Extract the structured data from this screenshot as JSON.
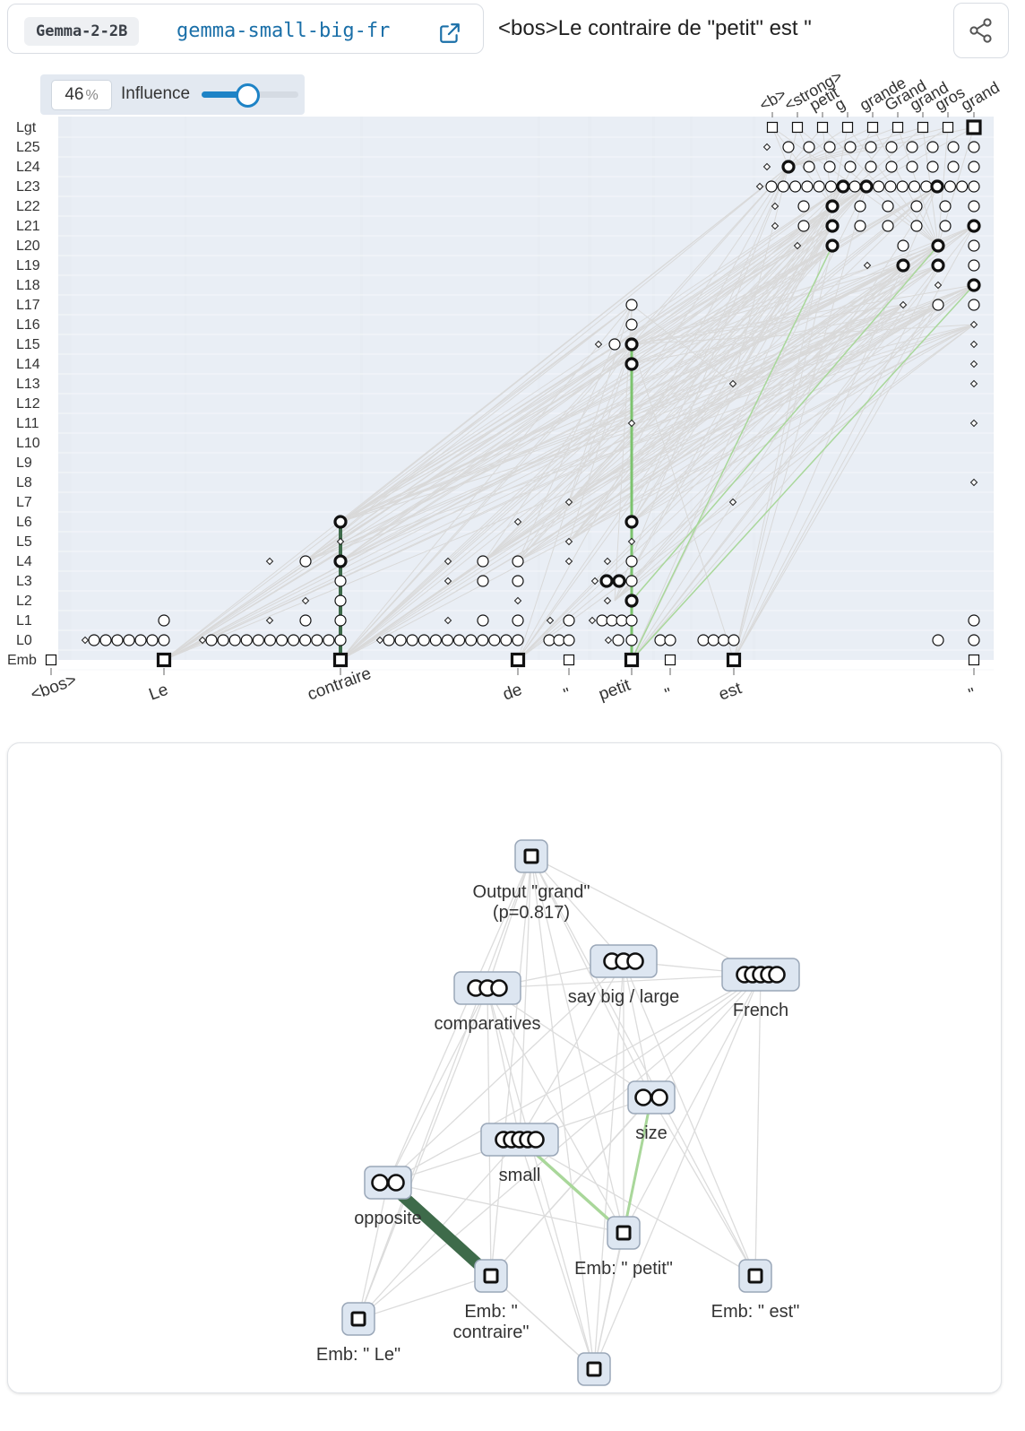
{
  "header": {
    "model_badge": "Gemma-2-2B",
    "graph_name": "gemma-small-big-fr",
    "prompt": "<bos>Le contraire de \"petit\" est \""
  },
  "influence": {
    "value": "46",
    "unit": "%",
    "label": "Influence",
    "fraction": 0.46
  },
  "attribution_graph": {
    "layer_labels": [
      "Lgt",
      "L25",
      "L24",
      "L23",
      "L22",
      "L21",
      "L20",
      "L19",
      "L18",
      "L17",
      "L16",
      "L15",
      "L14",
      "L13",
      "L12",
      "L11",
      "L10",
      "L9",
      "L8",
      "L7",
      "L6",
      "L5",
      "L4",
      "L3",
      "L2",
      "L1",
      "L0",
      "Emb"
    ],
    "prompt_tokens": [
      "<bos>",
      "Le",
      "contraire",
      "de",
      "\"",
      "petit",
      "\"",
      "est",
      "\""
    ],
    "logit_tokens": [
      "<b>",
      "<strong>",
      "petit",
      "g",
      "grande",
      "Grand",
      "grand",
      "gros",
      "grand"
    ]
  },
  "subgraph": {
    "nodes": [
      {
        "id": "out",
        "label": "Output \"grand\"",
        "label2": "(p=0.817)",
        "kind": "square",
        "icon_circles": 0
      },
      {
        "id": "saybig",
        "label": "say big / large",
        "label2": "",
        "kind": "cluster",
        "icon_circles": 3
      },
      {
        "id": "french",
        "label": "French",
        "label2": "",
        "kind": "cluster",
        "icon_circles": 5
      },
      {
        "id": "comparatives",
        "label": "comparatives",
        "label2": "",
        "kind": "cluster",
        "icon_circles": 3
      },
      {
        "id": "size",
        "label": "size",
        "label2": "",
        "kind": "cluster",
        "icon_circles": 2
      },
      {
        "id": "small",
        "label": "small",
        "label2": "",
        "kind": "cluster",
        "icon_circles": 5
      },
      {
        "id": "opposite",
        "label": "opposite",
        "label2": "",
        "kind": "cluster",
        "icon_circles": 2
      },
      {
        "id": "embpetit",
        "label": "Emb: \" petit\"",
        "label2": "",
        "kind": "square",
        "icon_circles": 0
      },
      {
        "id": "embcontraire",
        "label": "Emb: \"",
        "label2": "contraire\"",
        "kind": "square",
        "icon_circles": 0
      },
      {
        "id": "embest",
        "label": "Emb: \" est\"",
        "label2": "",
        "kind": "square",
        "icon_circles": 0
      },
      {
        "id": "emble",
        "label": "Emb: \" Le\"",
        "label2": "",
        "kind": "square",
        "icon_circles": 0
      },
      {
        "id": "embbottom",
        "label": "",
        "label2": "",
        "kind": "square",
        "icon_circles": 0
      }
    ]
  },
  "colors": {
    "accent": "#1e83c6",
    "link_strong": "#3e6b4a",
    "link_light": "#a9d79a",
    "link_gray": "#d9d9d9",
    "panel_bg": "#e7ecf3",
    "graph_name": "#1a6fa8"
  }
}
